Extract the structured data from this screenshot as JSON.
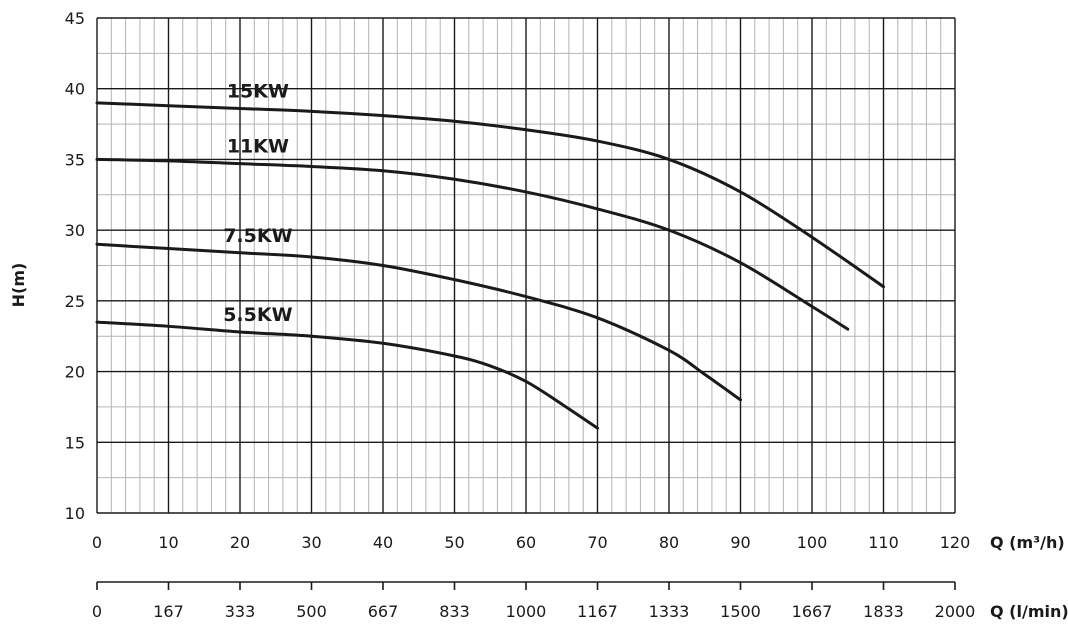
{
  "chart_data": {
    "type": "line",
    "title": "",
    "xlabel": "Q (m³/h)",
    "x2label": "Q (l/min)",
    "ylabel": "H(m)",
    "xlim": [
      0,
      120
    ],
    "ylim": [
      10,
      45
    ],
    "grid": true,
    "legend": "inline",
    "x_ticks": [
      "0",
      "10",
      "20",
      "30",
      "40",
      "50",
      "60",
      "70",
      "80",
      "90",
      "100",
      "110",
      "120"
    ],
    "y_ticks": [
      "10",
      "15",
      "20",
      "25",
      "30",
      "35",
      "40",
      "45"
    ],
    "x2_ticks": [
      "0",
      "167",
      "333",
      "500",
      "667",
      "833",
      "1000",
      "1167",
      "1333",
      "1500",
      "1667",
      "1833",
      "2000"
    ],
    "colors": {
      "line": "#1a1a1a",
      "grid_major": "#1a1a1a",
      "grid_minor": "#b4b4b4"
    },
    "series": [
      {
        "name": "15KW",
        "x": [
          0,
          10,
          20,
          30,
          40,
          50,
          60,
          70,
          80,
          90,
          100,
          110
        ],
        "y": [
          39,
          38.8,
          38.6,
          38.4,
          38.1,
          37.7,
          37.1,
          36.3,
          35,
          32.7,
          29.5,
          26
        ]
      },
      {
        "name": "11KW",
        "x": [
          0,
          10,
          20,
          30,
          40,
          50,
          60,
          70,
          80,
          90,
          100,
          105
        ],
        "y": [
          35,
          34.9,
          34.7,
          34.5,
          34.2,
          33.6,
          32.7,
          31.5,
          30,
          27.7,
          24.6,
          23
        ]
      },
      {
        "name": "7.5KW",
        "x": [
          0,
          10,
          20,
          30,
          40,
          50,
          60,
          70,
          80,
          85,
          90
        ],
        "y": [
          29,
          28.7,
          28.4,
          28.1,
          27.5,
          26.5,
          25.3,
          23.8,
          21.5,
          19.8,
          18
        ]
      },
      {
        "name": "5.5KW",
        "x": [
          0,
          10,
          20,
          30,
          40,
          50,
          55,
          60,
          65,
          70
        ],
        "y": [
          23.5,
          23.2,
          22.8,
          22.5,
          22,
          21.1,
          20.4,
          19.3,
          17.7,
          16
        ]
      }
    ]
  }
}
